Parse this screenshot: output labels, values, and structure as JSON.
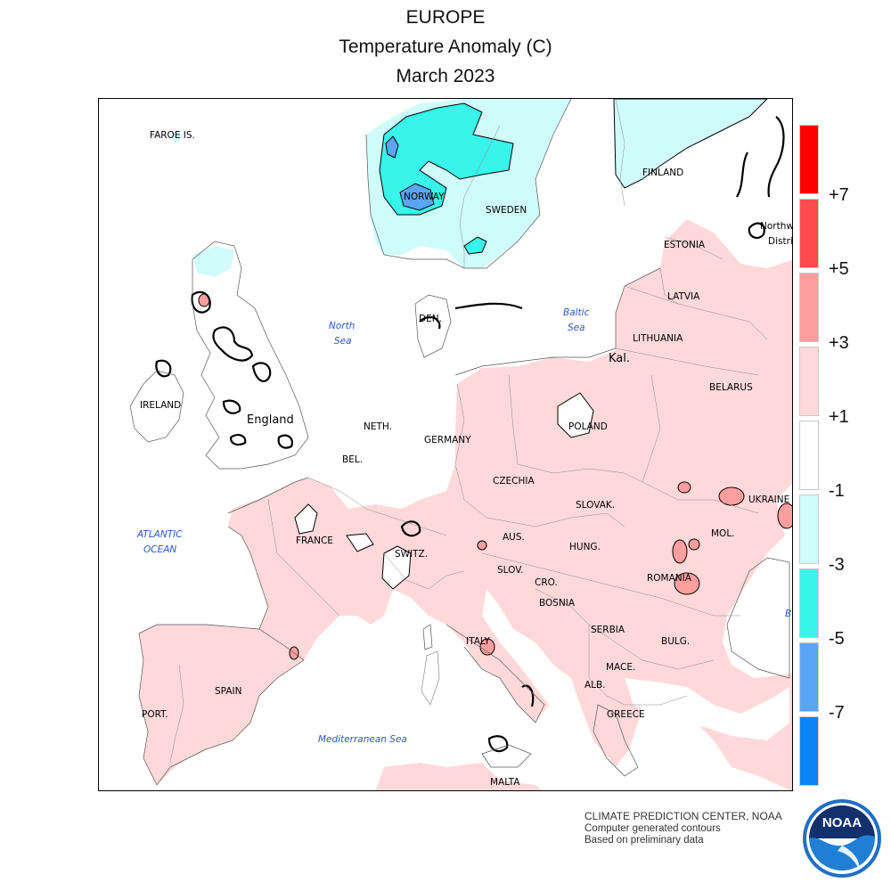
{
  "title": {
    "line1": "EUROPE",
    "line2": "Temperature Anomaly (C)",
    "line3": "March 2023"
  },
  "map_labels": {
    "faroe": "FAROE IS.",
    "norway": "NORWAY",
    "sweden": "SWEDEN",
    "finland": "FINLAND",
    "northwest": "Northw",
    "district": "Distri",
    "estonia": "ESTONIA",
    "latvia": "LATVIA",
    "lithuania": "LITHUANIA",
    "kal": "Kal.",
    "belarus": "BELARUS",
    "poland": "POLAND",
    "ireland": "IRELAND",
    "england": "England",
    "den": "DEN.",
    "neth": "NETH.",
    "germany": "GERMANY",
    "bel": "BEL.",
    "czechia": "CZECHIA",
    "slovak": "SLOVAK.",
    "ukraine": "UKRAINE",
    "france": "FRANCE",
    "aus": "AUS.",
    "switz": "SWITZ.",
    "hung": "HUNG.",
    "mol": "MOL.",
    "slov": "SLOV.",
    "cro": "CRO.",
    "romania": "ROMANIA",
    "bosnia": "BOSNIA",
    "serbia": "SERBIA",
    "bulg": "BULG.",
    "italy": "ITALY",
    "mace": "MACE.",
    "alb": "ALB.",
    "greece": "GREECE",
    "spain": "SPAIN",
    "port": "PORT.",
    "malta": "MALTA",
    "black_sea_fragment": "B"
  },
  "sea_labels": {
    "north_sea_1": "North",
    "north_sea_2": "Sea",
    "baltic_1": "Baltic",
    "baltic_2": "Sea",
    "atlantic_1": "ATLANTIC",
    "atlantic_2": "OCEAN",
    "mediterranean": "Mediterranean Sea"
  },
  "legend": {
    "boxes": [
      {
        "range": ">7",
        "color": "#ff0000"
      },
      {
        "range": "5 to 7",
        "color": "#ff4b4b"
      },
      {
        "range": "3 to 5",
        "color": "#ff9e9e"
      },
      {
        "range": "1 to 3",
        "color": "#ffd9d9"
      },
      {
        "range": "-1 to 1",
        "color": "#ffffff"
      },
      {
        "range": "-3 to -1",
        "color": "#cffcfb"
      },
      {
        "range": "-5 to -3",
        "color": "#38f4ea"
      },
      {
        "range": "-7 to -5",
        "color": "#5ba6f4"
      },
      {
        "range": "<-7",
        "color": "#0a84f5"
      }
    ],
    "ticks": [
      "+7",
      "+5",
      "+3",
      "+1",
      "-1",
      "-3",
      "-5",
      "-7"
    ]
  },
  "colors": {
    "warm_1_3": "#ffd9d9",
    "warm_3_5": "#ff9e9e",
    "cold_1_3": "#cffcfb",
    "cold_3_5": "#38f4ea",
    "cold_5_7": "#5ba6f4"
  },
  "credits": {
    "line1": "CLIMATE PREDICTION CENTER, NOAA",
    "line2": "Computer generated contours",
    "line3": "Based on preliminary data"
  },
  "logo": {
    "text": "NOAA"
  }
}
